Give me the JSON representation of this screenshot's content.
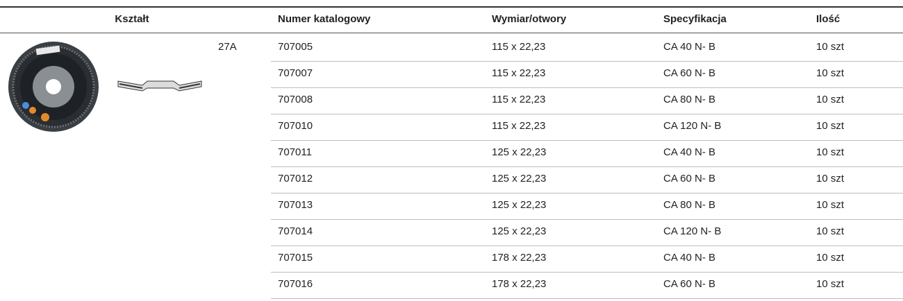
{
  "header": {
    "columns": [
      "Kształt",
      "Numer katalogowy",
      "Wymiar/otwory",
      "Specyfikacja",
      "Ilość"
    ]
  },
  "shape": {
    "label": "27A"
  },
  "table": {
    "rows": [
      [
        "707005",
        "115 x 22,23",
        "CA 40 N- B",
        "10 szt"
      ],
      [
        "707007",
        "115 x 22,23",
        "CA 60 N- B",
        "10 szt"
      ],
      [
        "707008",
        "115 x 22,23",
        "CA 80 N- B",
        "10 szt"
      ],
      [
        "707010",
        "115 x 22,23",
        "CA 120 N- B",
        "10 szt"
      ],
      [
        "707011",
        "125 x 22,23",
        "CA 40 N- B",
        "10 szt"
      ],
      [
        "707012",
        "125 x 22,23",
        "CA 60 N- B",
        "10 szt"
      ],
      [
        "707013",
        "125 x 22,23",
        "CA 80 N- B",
        "10 szt"
      ],
      [
        "707014",
        "125 x 22,23",
        "CA 120 N- B",
        "10 szt"
      ],
      [
        "707015",
        "178 x 22,23",
        "CA 40 N- B",
        "10 szt"
      ],
      [
        "707016",
        "178 x 22,23",
        "CA 60 N- B",
        "10 szt"
      ]
    ]
  }
}
